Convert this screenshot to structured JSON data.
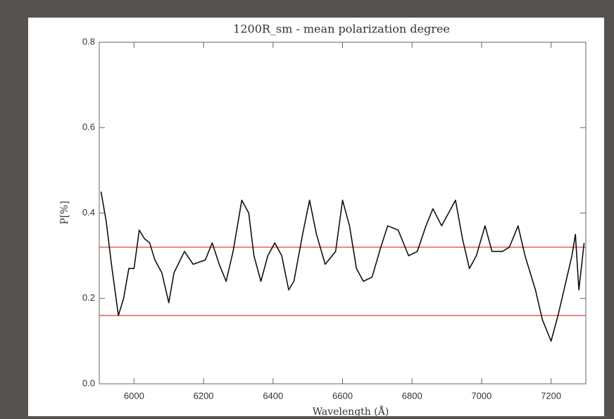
{
  "chart_data": {
    "type": "line",
    "title": "1200R_sm - mean polarization degree",
    "x_label": "Wavelength (Å)",
    "y_label": "P[%]",
    "xlim": [
      5900,
      7300
    ],
    "ylim": [
      0,
      0.8
    ],
    "xticks": [
      6000,
      6200,
      6400,
      6600,
      6800,
      7000,
      7200
    ],
    "yticks": [
      {
        "value": 0,
        "label": "0.0"
      },
      0.2,
      0.4,
      0.6,
      0.8
    ],
    "reference_lines": {
      "color": "#e06060",
      "values": [
        0.32,
        0.16
      ]
    },
    "series": [
      {
        "color": "#111111",
        "x": [
          5905,
          5920,
          5935,
          5955,
          5970,
          5985,
          6000,
          6015,
          6030,
          6045,
          6060,
          6080,
          6100,
          6115,
          6145,
          6170,
          6205,
          6225,
          6245,
          6265,
          6285,
          6310,
          6330,
          6345,
          6365,
          6385,
          6405,
          6425,
          6445,
          6460,
          6485,
          6505,
          6525,
          6550,
          6580,
          6600,
          6620,
          6640,
          6660,
          6685,
          6710,
          6730,
          6760,
          6790,
          6815,
          6840,
          6860,
          6885,
          6905,
          6925,
          6945,
          6965,
          6985,
          7010,
          7030,
          7060,
          7080,
          7105,
          7125,
          7155,
          7175,
          7200,
          7220,
          7240,
          7260,
          7270,
          7280,
          7295
        ],
        "values": [
          0.45,
          0.38,
          0.28,
          0.16,
          0.2,
          0.27,
          0.27,
          0.36,
          0.34,
          0.33,
          0.29,
          0.26,
          0.19,
          0.26,
          0.31,
          0.28,
          0.29,
          0.33,
          0.28,
          0.24,
          0.31,
          0.43,
          0.4,
          0.3,
          0.24,
          0.3,
          0.33,
          0.3,
          0.22,
          0.24,
          0.35,
          0.43,
          0.35,
          0.28,
          0.31,
          0.43,
          0.37,
          0.27,
          0.24,
          0.25,
          0.32,
          0.37,
          0.36,
          0.3,
          0.31,
          0.37,
          0.41,
          0.37,
          0.4,
          0.43,
          0.34,
          0.27,
          0.3,
          0.37,
          0.31,
          0.31,
          0.32,
          0.37,
          0.3,
          0.22,
          0.15,
          0.1,
          0.16,
          0.23,
          0.3,
          0.35,
          0.22,
          0.33
        ]
      }
    ]
  }
}
